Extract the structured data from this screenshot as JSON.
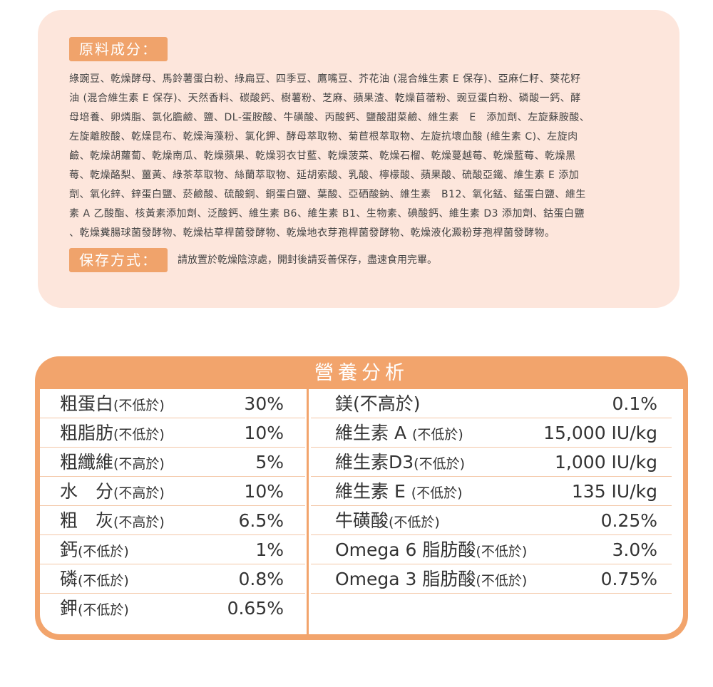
{
  "ingredients_section": {
    "label": "原料成分：",
    "lines": [
      "綠豌豆、乾燥酵母、馬鈴薯蛋白粉、綠扁豆、四季豆、鷹嘴豆、芥花油 (混合維生素 E 保存)、亞麻仁籽、葵花籽",
      "油 (混合維生素 E 保存)、天然香料、碳酸鈣、樹薯粉、芝麻、蘋果渣、乾燥苜蓿粉、豌豆蛋白粉、磷酸一鈣、酵",
      "母培養、卵燐脂、氯化膽鹼、鹽、DL-蛋胺酸、牛磺酸、丙酸鈣、鹽酸甜菜鹼、維生素　E　添加劑、左旋蘇胺酸、",
      "左旋離胺酸、乾燥昆布、乾燥海藻粉、氯化鉀、酵母萃取物、菊苣根萃取物、左旋抗壞血酸 (維生素 C)、左旋肉",
      "鹼、乾燥胡蘿蔔、乾燥南瓜、乾燥蘋果、乾燥羽衣甘藍、乾燥菠菜、乾燥石榴、乾燥蔓越莓、乾燥藍莓、乾燥黑",
      "莓、乾燥酪梨、薑黃、綠茶萃取物、絲蘭萃取物、延胡索酸、乳酸、檸檬酸、蘋果酸、硫酸亞鐵、維生素 E 添加",
      "劑、氧化鋅、鋅蛋白鹽、菸鹼酸、硫酸銅、銅蛋白鹽、葉酸、亞硒酸鈉、維生素　B12、氧化錳、錳蛋白鹽、維生",
      "素 A 乙酸酯、核黃素添加劑、泛酸鈣、維生素 B6、維生素 B1、生物素、碘酸鈣、維生素 D3 添加劑、鈷蛋白鹽",
      "、乾燥糞腸球菌發酵物、乾燥枯草桿菌發酵物、乾燥地衣芽孢桿菌發酵物、乾燥液化澱粉芽孢桿菌發酵物。"
    ]
  },
  "storage_section": {
    "label": "保存方式：",
    "text": "請放置於乾燥陰涼處，開封後請妥善保存，盡速食用完畢。"
  },
  "nutrition": {
    "title": "營養分析",
    "left_rows": [
      {
        "name": "粗蛋白",
        "qualifier": "(不低於)",
        "value": "30%"
      },
      {
        "name": "粗脂肪",
        "qualifier": "(不低於)",
        "value": "10%"
      },
      {
        "name": "粗纖維",
        "qualifier": "(不高於)",
        "value": "5%"
      },
      {
        "name": "水　分",
        "qualifier": "(不高於)",
        "value": "10%"
      },
      {
        "name": "粗　灰",
        "qualifier": "(不高於)",
        "value": "6.5%"
      },
      {
        "name": "鈣",
        "qualifier": "(不低於)",
        "value": "1%"
      },
      {
        "name": "磷",
        "qualifier": "(不低於)",
        "value": "0.8%"
      },
      {
        "name": "鉀",
        "qualifier": "(不低於)",
        "value": "0.65%"
      }
    ],
    "right_rows": [
      {
        "name": "鎂(不高於)",
        "qualifier": "",
        "value": "0.1%"
      },
      {
        "name": "維生素 A ",
        "qualifier": "(不低於)",
        "value": "15,000 IU/kg"
      },
      {
        "name": "維生素D3",
        "qualifier": "(不低於)",
        "value": "1,000 IU/kg"
      },
      {
        "name": "維生素 E ",
        "qualifier": "(不低於)",
        "value": "135 IU/kg"
      },
      {
        "name": "牛磺酸",
        "qualifier": "(不低於)",
        "value": "0.25%"
      },
      {
        "name": "Omega 6 脂肪酸",
        "qualifier": "(不低於)",
        "value": "3.0%"
      },
      {
        "name": "Omega 3 脂肪酸",
        "qualifier": "(不低於)",
        "value": "0.75%"
      },
      {
        "name": "",
        "qualifier": "",
        "value": ""
      }
    ]
  },
  "colors": {
    "panel_background": "#fde6dc",
    "accent_orange": "#f2a46c",
    "row_divider": "#f3c7a7"
  }
}
